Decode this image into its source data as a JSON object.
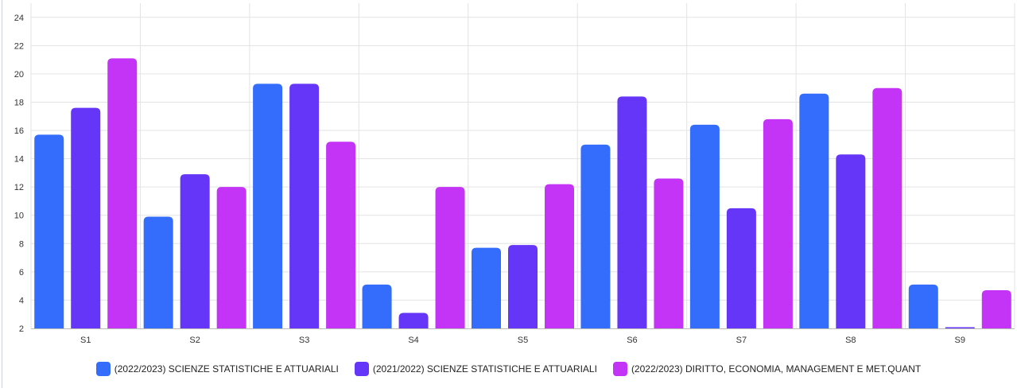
{
  "chart_data": {
    "type": "bar",
    "categories": [
      "S1",
      "S2",
      "S3",
      "S4",
      "S5",
      "S6",
      "S7",
      "S8",
      "S9"
    ],
    "series": [
      {
        "name": "(2022/2023) SCIENZE STATISTICHE E ATTUARIALI",
        "color": "#346cfb",
        "values": [
          15.7,
          9.9,
          19.3,
          5.1,
          7.7,
          15.0,
          16.4,
          18.6,
          5.1
        ]
      },
      {
        "name": "(2021/2022) SCIENZE STATISTICHE E ATTUARIALI",
        "color": "#6535f8",
        "values": [
          17.6,
          12.9,
          19.3,
          3.1,
          7.9,
          18.4,
          10.5,
          14.3,
          2.0
        ]
      },
      {
        "name": "(2022/2023) DIRITTO, ECONOMIA, MANAGEMENT E MET.QUANT",
        "color": "#c434f7",
        "values": [
          21.1,
          12.0,
          15.2,
          12.0,
          12.2,
          12.6,
          16.8,
          19.0,
          4.7
        ]
      }
    ],
    "ylim": [
      2,
      25
    ],
    "yticks": [
      2,
      4,
      6,
      8,
      10,
      12,
      14,
      16,
      18,
      20,
      22,
      24
    ],
    "xlabel": "",
    "ylabel": "",
    "title": "",
    "grid": true,
    "legend_position": "bottom"
  }
}
